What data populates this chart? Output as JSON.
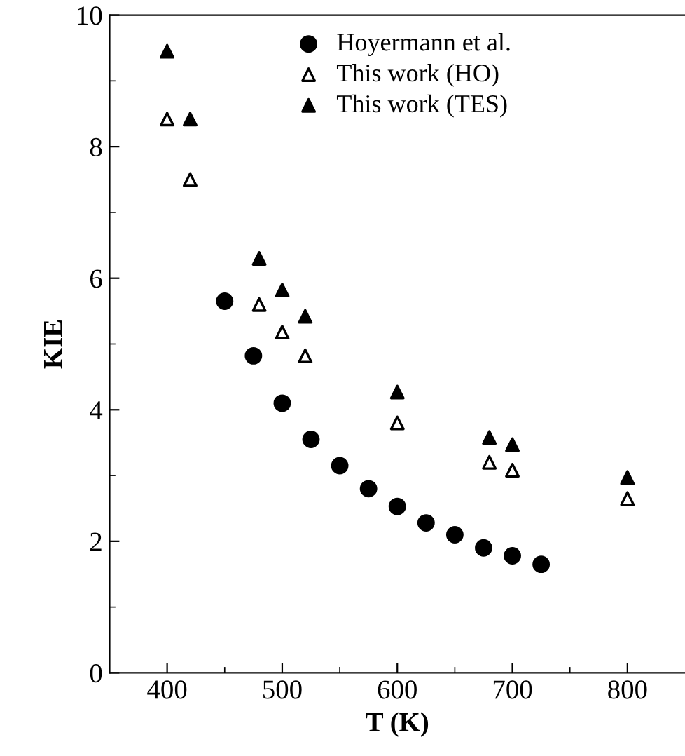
{
  "chart_data": {
    "type": "scatter",
    "xlabel": "T (K)",
    "ylabel": "KIE",
    "xlim": [
      350,
      850
    ],
    "ylim": [
      0,
      10
    ],
    "xticks": [
      400,
      {
        "value": 450,
        "label": null
      },
      500,
      {
        "value": 550,
        "label": null
      },
      600,
      {
        "value": 650,
        "label": null
      },
      700,
      {
        "value": 750,
        "label": null
      },
      800
    ],
    "yticks": [
      0,
      {
        "value": 1,
        "label": null
      },
      2,
      {
        "value": 3,
        "label": null
      },
      4,
      {
        "value": 5,
        "label": null
      },
      6,
      {
        "value": 7,
        "label": null
      },
      8,
      {
        "value": 9,
        "label": null
      },
      10
    ],
    "grid": false,
    "legend": "top",
    "series": [
      {
        "name": "Hoyermann et al.",
        "color": "#000000",
        "marker": "circle",
        "x": [
          450,
          475,
          500,
          525,
          550,
          575,
          600,
          625,
          650,
          675,
          700,
          725
        ],
        "values": [
          5.65,
          4.82,
          4.1,
          3.55,
          3.15,
          2.8,
          2.53,
          2.28,
          2.1,
          1.9,
          1.78,
          1.65
        ]
      },
      {
        "name": "This work (HO)",
        "color": "#000000",
        "marker": "triangle",
        "x": [
          400,
          420,
          480,
          500,
          520,
          600,
          680,
          700,
          800
        ],
        "values": [
          8.42,
          7.5,
          5.6,
          5.18,
          4.82,
          3.8,
          3.2,
          3.08,
          2.65
        ]
      },
      {
        "name": "This work (TES)",
        "color": "#000000",
        "marker": "triangle",
        "x": [
          400,
          420,
          480,
          500,
          520,
          600,
          680,
          700,
          800
        ],
        "values": [
          9.45,
          8.42,
          6.3,
          5.82,
          5.42,
          4.27,
          3.58,
          3.47,
          2.97
        ]
      }
    ]
  }
}
